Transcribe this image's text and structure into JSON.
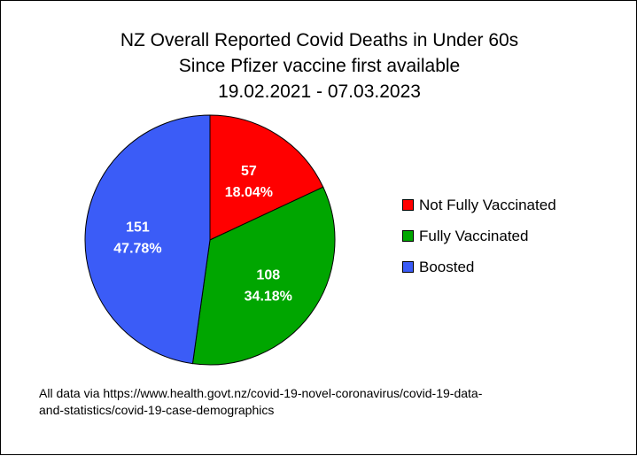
{
  "chart_data": {
    "type": "pie",
    "title": [
      "NZ Overall Reported Covid Deaths in Under 60s",
      "Since Pfizer vaccine first available",
      "19.02.2021 - 07.03.2023"
    ],
    "categories": [
      "Not Fully Vaccinated",
      "Fully Vaccinated",
      "Boosted"
    ],
    "values": [
      57,
      108,
      151
    ],
    "percent_labels": [
      "18.04%",
      "34.18%",
      "47.78%"
    ],
    "colors": [
      "#ff0000",
      "#00a600",
      "#3b5cf7"
    ],
    "legend_position": "right",
    "footnote": [
      "All data via https://www.health.govt.nz/covid-19-novel-coronavirus/covid-19-data-",
      "and-statistics/covid-19-case-demographics"
    ]
  }
}
